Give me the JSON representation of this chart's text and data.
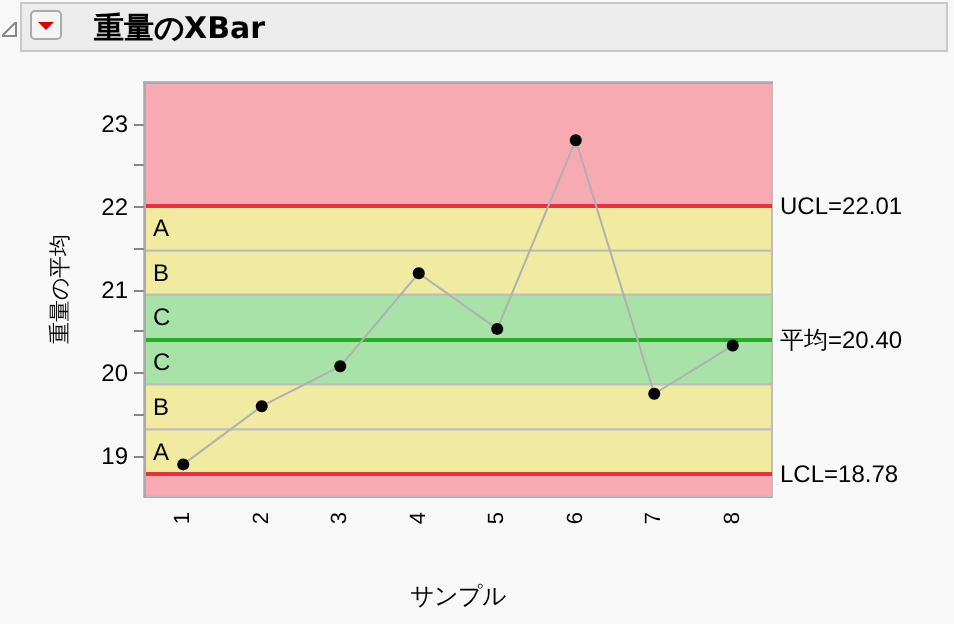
{
  "chart_data": {
    "type": "line",
    "title": "重量のXBar",
    "xlabel": "サンプル",
    "ylabel": "重量の平均",
    "categories": [
      "1",
      "2",
      "3",
      "4",
      "5",
      "6",
      "7",
      "8"
    ],
    "series": [
      {
        "color": "#b0b0b0",
        "values": [
          18.9,
          19.6,
          20.08,
          21.2,
          20.53,
          22.8,
          19.75,
          20.33
        ]
      }
    ],
    "marker": "circle",
    "grid": false,
    "ylim": [
      18.52,
      23.5
    ],
    "yticks": [
      19,
      20,
      21,
      22,
      23,
      {
        "value": 19.5,
        "label": null
      },
      {
        "value": 20.5,
        "label": null
      },
      {
        "value": 21.5,
        "label": null
      },
      {
        "value": 22.5,
        "label": null
      }
    ],
    "bands": [
      {
        "axis": "y",
        "from": 22.01,
        "to": 23.5,
        "label": null,
        "color": "#f7aab2"
      },
      {
        "axis": "y",
        "from": 21.47,
        "to": 22.01,
        "label": "A",
        "color": "#f0eba0"
      },
      {
        "axis": "y",
        "from": 20.94,
        "to": 21.47,
        "label": "B",
        "color": "#f0eba0"
      },
      {
        "axis": "y",
        "from": 20.4,
        "to": 20.94,
        "label": "C",
        "color": "#a8e2a8"
      },
      {
        "axis": "y",
        "from": 19.86,
        "to": 20.4,
        "label": "C",
        "color": "#a8e2a8"
      },
      {
        "axis": "y",
        "from": 19.32,
        "to": 19.86,
        "label": "B",
        "color": "#f0eba0"
      },
      {
        "axis": "y",
        "from": 18.78,
        "to": 19.32,
        "label": "A",
        "color": "#f0eba0"
      },
      {
        "axis": "y",
        "from": 18.52,
        "to": 18.78,
        "label": null,
        "color": "#f7aab2"
      }
    ],
    "ref_lines": [
      {
        "axis": "y",
        "value": 22.01,
        "label": "UCL=22.01",
        "color": "#e8303c"
      },
      {
        "axis": "y",
        "value": 20.4,
        "label": "平均=20.40",
        "color": "#22b022"
      },
      {
        "axis": "y",
        "value": 18.78,
        "label": "LCL=18.78",
        "color": "#e8303c"
      }
    ]
  }
}
